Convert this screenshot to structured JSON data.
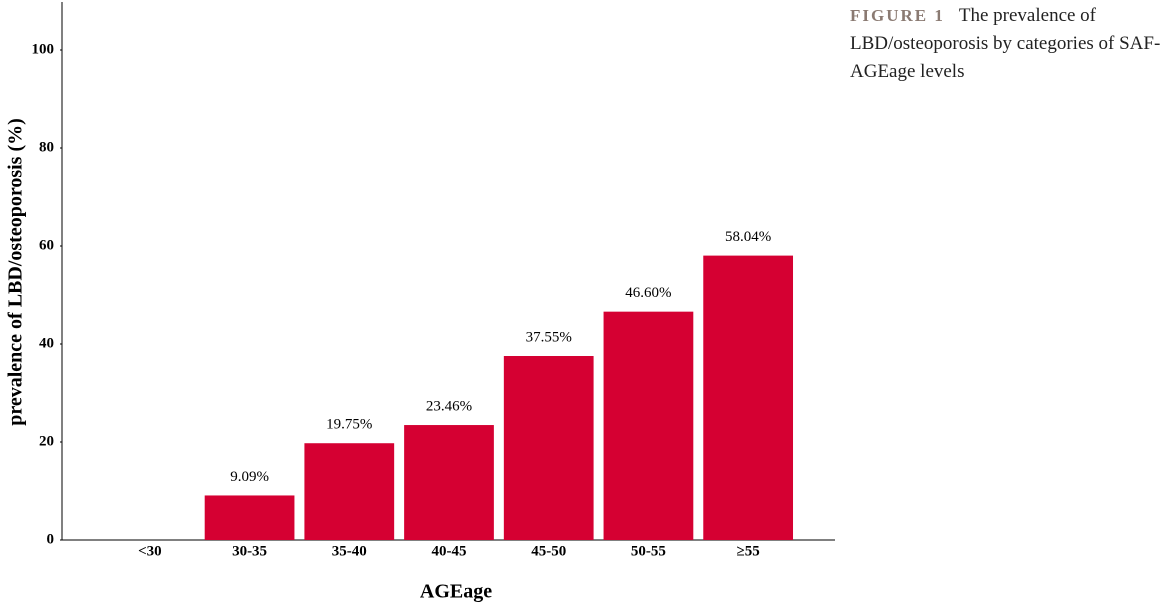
{
  "chart_data": {
    "type": "bar",
    "x_label": "AGEage",
    "y_label": "prevalence of LBD/osteoporosis (%)",
    "categories": [
      "<30",
      "30-35",
      "35-40",
      "40-45",
      "45-50",
      "50-55",
      "≥55"
    ],
    "values": [
      0,
      9.09,
      19.75,
      23.46,
      37.55,
      46.6,
      58.04
    ],
    "value_labels": [
      null,
      "9.09%",
      "19.75%",
      "23.46%",
      "37.55%",
      "46.60%",
      "58.04%"
    ],
    "color": "#d50032",
    "ylim": [
      0,
      110
    ],
    "yticks": [
      0,
      20,
      40,
      60,
      80,
      100
    ],
    "grid": false
  },
  "caption": {
    "label": "FIGURE 1",
    "text": "The prevalence of LBD/osteoporosis by categories of SAF-AGEage levels"
  }
}
